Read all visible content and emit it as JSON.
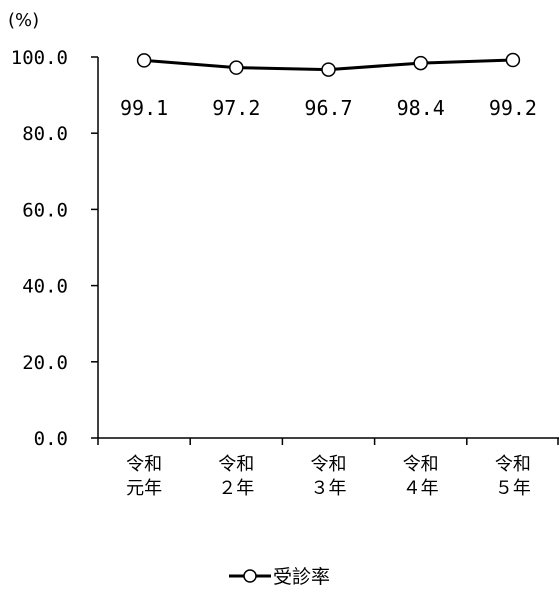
{
  "chart_data": {
    "type": "line",
    "unit_label": "(%)",
    "categories": [
      [
        "令和",
        "元年"
      ],
      [
        "令和",
        "２年"
      ],
      [
        "令和",
        "３年"
      ],
      [
        "令和",
        "４年"
      ],
      [
        "令和",
        "５年"
      ]
    ],
    "y_ticks": [
      "0.0",
      "20.0",
      "40.0",
      "60.0",
      "80.0",
      "100.0"
    ],
    "ylim": [
      0,
      100
    ],
    "series": [
      {
        "name": "受診率",
        "values": [
          99.1,
          97.2,
          96.7,
          98.4,
          99.2
        ],
        "labels": [
          "99.1",
          "97.2",
          "96.7",
          "98.4",
          "99.2"
        ]
      }
    ],
    "grid": false,
    "legend_position": "bottom",
    "marker": "open-circle"
  }
}
